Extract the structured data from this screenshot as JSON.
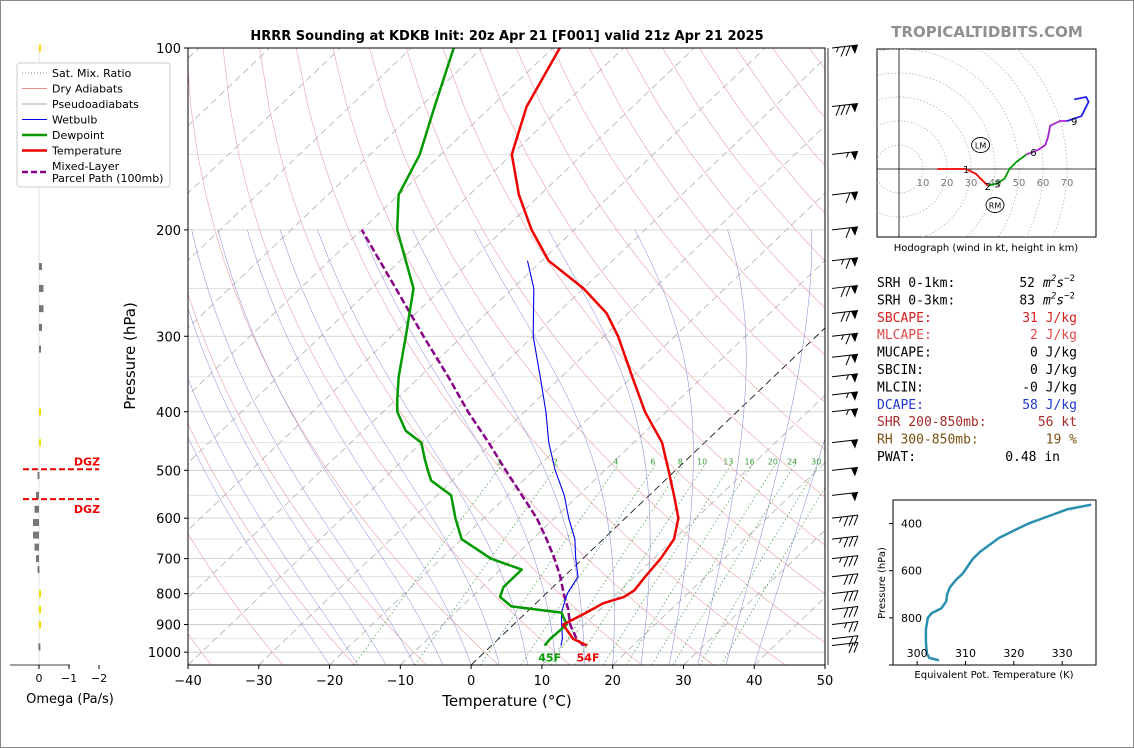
{
  "watermark": "TROPICALTIDBITS.COM",
  "omega_panel": {
    "xlabel": "Omega (Pa/s)",
    "ticks": [
      "0",
      "−1",
      "−2"
    ],
    "dgz_label": "DGZ",
    "bars": [
      {
        "p": 100,
        "w": -0.05,
        "c": "#f0e000"
      },
      {
        "p": 120,
        "w": -0.1,
        "c": "#f0e000"
      },
      {
        "p": 140,
        "w": -0.1,
        "c": "#f0e000"
      },
      {
        "p": 160,
        "w": -0.15,
        "c": "#f0e000"
      },
      {
        "p": 230,
        "w": -0.1,
        "c": "#777777"
      },
      {
        "p": 250,
        "w": -0.15,
        "c": "#777777"
      },
      {
        "p": 270,
        "w": -0.15,
        "c": "#777777"
      },
      {
        "p": 290,
        "w": -0.1,
        "c": "#777777"
      },
      {
        "p": 315,
        "w": -0.05,
        "c": "#777777"
      },
      {
        "p": 400,
        "w": -0.02,
        "c": "#f0e000"
      },
      {
        "p": 450,
        "w": -0.02,
        "c": "#f0e000"
      },
      {
        "p": 510,
        "w": 0.05,
        "c": "#777777"
      },
      {
        "p": 550,
        "w": 0.1,
        "c": "#777777"
      },
      {
        "p": 580,
        "w": 0.15,
        "c": "#777777"
      },
      {
        "p": 610,
        "w": 0.2,
        "c": "#777777"
      },
      {
        "p": 640,
        "w": 0.2,
        "c": "#777777"
      },
      {
        "p": 670,
        "w": 0.15,
        "c": "#777777"
      },
      {
        "p": 700,
        "w": 0.1,
        "c": "#777777"
      },
      {
        "p": 730,
        "w": 0.05,
        "c": "#777777"
      },
      {
        "p": 800,
        "w": -0.02,
        "c": "#f0e000"
      },
      {
        "p": 850,
        "w": -0.02,
        "c": "#f0e000"
      },
      {
        "p": 900,
        "w": -0.02,
        "c": "#f0e000"
      },
      {
        "p": 980,
        "w": 0.02,
        "c": "#777777"
      }
    ]
  },
  "legend": [
    {
      "label": "Sat. Mix. Ratio",
      "color": "#888888",
      "style": "dotted",
      "width": 1
    },
    {
      "label": "Dry Adiabats",
      "color": "#e89090",
      "style": "solid",
      "width": 1
    },
    {
      "label": "Pseudoadiabats",
      "color": "#aaaaaa",
      "style": "solid",
      "width": 1
    },
    {
      "label": "Wetbulb",
      "color": "#0000ee",
      "style": "solid",
      "width": 1
    },
    {
      "label": "Dewpoint",
      "color": "#009900",
      "style": "solid",
      "width": 2.5
    },
    {
      "label": "Temperature",
      "color": "#ee0000",
      "style": "solid",
      "width": 2.5
    },
    {
      "label": "Mixed-Layer\nParcel Path (100mb)",
      "color": "#880088",
      "style": "dashed",
      "width": 2.5
    }
  ],
  "chart_data": [
    {
      "type": "line",
      "title": "HRRR Sounding at KDKB Init: 20z Apr 21 [F001] valid 21z Apr 21 2025",
      "xlabel": "Temperature (°C)",
      "ylabel": "Pressure (hPa)",
      "xlim": [
        -40,
        50
      ],
      "ylim": [
        1050,
        100
      ],
      "y_scale": "log",
      "x_ticks": [
        -40,
        -30,
        -20,
        -10,
        0,
        10,
        20,
        30,
        40,
        50
      ],
      "x_tick_labels": [
        "−40",
        "−30",
        "−20",
        "−10",
        "0",
        "10",
        "20",
        "30",
        "40",
        "50"
      ],
      "y_ticks": [
        100,
        200,
        300,
        400,
        500,
        600,
        700,
        800,
        900,
        1000
      ],
      "mixing_ratio_labels": [
        "1",
        "2",
        "4",
        "6",
        "8",
        "10",
        "13",
        "16",
        "20",
        "24",
        "30",
        "36"
      ],
      "series": [
        {
          "name": "Temperature",
          "color": "#ee0000",
          "points": [
            [
              975,
              13.5
            ],
            [
              950,
              10.5
            ],
            [
              900,
              7
            ],
            [
              860,
              8.5
            ],
            [
              830,
              9.5
            ],
            [
              810,
              11.5
            ],
            [
              790,
              12
            ],
            [
              750,
              11.5
            ],
            [
              700,
              11
            ],
            [
              650,
              10
            ],
            [
              600,
              7.5
            ],
            [
              550,
              3.5
            ],
            [
              500,
              -1
            ],
            [
              450,
              -6
            ],
            [
              400,
              -13
            ],
            [
              350,
              -20
            ],
            [
              300,
              -28
            ],
            [
              275,
              -33
            ],
            [
              250,
              -40
            ],
            [
              225,
              -49
            ],
            [
              200,
              -56
            ],
            [
              175,
              -63
            ],
            [
              150,
              -70
            ],
            [
              125,
              -75
            ],
            [
              100,
              -79
            ]
          ]
        },
        {
          "name": "Dewpoint",
          "color": "#009900",
          "points": [
            [
              975,
              7.5
            ],
            [
              950,
              7.3
            ],
            [
              900,
              7.5
            ],
            [
              860,
              5
            ],
            [
              840,
              -3
            ],
            [
              810,
              -6
            ],
            [
              780,
              -7
            ],
            [
              730,
              -7
            ],
            [
              700,
              -13
            ],
            [
              650,
              -20
            ],
            [
              600,
              -24
            ],
            [
              550,
              -28
            ],
            [
              520,
              -33
            ],
            [
              500,
              -35
            ],
            [
              480,
              -37
            ],
            [
              450,
              -40
            ],
            [
              430,
              -44
            ],
            [
              400,
              -48
            ],
            [
              380,
              -50
            ],
            [
              350,
              -53
            ],
            [
              300,
              -58
            ],
            [
              250,
              -64
            ],
            [
              200,
              -75
            ],
            [
              175,
              -80
            ],
            [
              150,
              -83
            ],
            [
              125,
              -88
            ],
            [
              100,
              -94
            ]
          ]
        },
        {
          "name": "Wetbulb",
          "color": "#0000ee",
          "points": [
            [
              975,
              9.8
            ],
            [
              950,
              9
            ],
            [
              900,
              6.8
            ],
            [
              860,
              5
            ],
            [
              830,
              4
            ],
            [
              800,
              3
            ],
            [
              750,
              2
            ],
            [
              700,
              -1
            ],
            [
              650,
              -4
            ],
            [
              600,
              -8
            ],
            [
              550,
              -12
            ],
            [
              500,
              -17
            ],
            [
              450,
              -22
            ],
            [
              400,
              -27
            ],
            [
              350,
              -33
            ],
            [
              300,
              -40
            ],
            [
              250,
              -47
            ],
            [
              225,
              -52
            ]
          ]
        },
        {
          "name": "Mixed-Layer Parcel Path (100mb)",
          "color": "#880088",
          "points": [
            [
              975,
              13
            ],
            [
              950,
              11
            ],
            [
              900,
              8
            ],
            [
              870,
              6.5
            ],
            [
              850,
              5.5
            ],
            [
              800,
              2.5
            ],
            [
              750,
              -0.5
            ],
            [
              700,
              -4
            ],
            [
              650,
              -8
            ],
            [
              600,
              -12.5
            ],
            [
              550,
              -18
            ],
            [
              500,
              -24
            ],
            [
              450,
              -30.5
            ],
            [
              400,
              -38
            ],
            [
              350,
              -46
            ],
            [
              300,
              -55.5
            ],
            [
              250,
              -66.5
            ],
            [
              200,
              -80
            ]
          ]
        }
      ],
      "surface_labels": {
        "temperature": "54F",
        "dewpoint": "45F"
      },
      "wind_barbs": [
        {
          "p": 100,
          "speed": 75
        },
        {
          "p": 125,
          "speed": 80
        },
        {
          "p": 150,
          "speed": 55
        },
        {
          "p": 175,
          "speed": 60
        },
        {
          "p": 200,
          "speed": 60
        },
        {
          "p": 225,
          "speed": 65
        },
        {
          "p": 250,
          "speed": 70
        },
        {
          "p": 275,
          "speed": 70
        },
        {
          "p": 300,
          "speed": 65
        },
        {
          "p": 325,
          "speed": 60
        },
        {
          "p": 350,
          "speed": 55
        },
        {
          "p": 375,
          "speed": 55
        },
        {
          "p": 400,
          "speed": 55
        },
        {
          "p": 450,
          "speed": 50
        },
        {
          "p": 500,
          "speed": 50
        },
        {
          "p": 550,
          "speed": 50
        },
        {
          "p": 600,
          "speed": 35
        },
        {
          "p": 650,
          "speed": 35
        },
        {
          "p": 700,
          "speed": 35
        },
        {
          "p": 750,
          "speed": 30
        },
        {
          "p": 800,
          "speed": 30
        },
        {
          "p": 850,
          "speed": 30
        },
        {
          "p": 900,
          "speed": 25
        },
        {
          "p": 950,
          "speed": 20
        },
        {
          "p": 975,
          "speed": 20
        }
      ]
    },
    {
      "type": "line",
      "title": "Hodograph (wind in kt, height in km)",
      "rings": [
        10,
        20,
        30,
        40,
        50,
        60,
        70
      ],
      "ring_labels": [
        "10",
        "20",
        "30",
        "40",
        "50",
        "60",
        "70"
      ],
      "storm_motion_labels": {
        "left": "LM",
        "right": "RM"
      },
      "storm_motion": {
        "left": [
          34,
          10
        ],
        "right": [
          40,
          -15
        ]
      },
      "height_labels": [
        {
          "label": "1",
          "u": 28,
          "v": 0
        },
        {
          "label": "2",
          "u": 37,
          "v": -7
        },
        {
          "label": "3",
          "u": 41,
          "v": -6
        },
        {
          "label": "6",
          "u": 56,
          "v": 7
        },
        {
          "label": "9",
          "u": 73,
          "v": 20
        }
      ],
      "segments": [
        {
          "color": "#ee0000",
          "points": [
            [
              16,
              0
            ],
            [
              22,
              0
            ],
            [
              28,
              0
            ],
            [
              32,
              -2
            ],
            [
              37,
              -7
            ]
          ]
        },
        {
          "color": "#009900",
          "points": [
            [
              37,
              -7
            ],
            [
              41,
              -6
            ],
            [
              44,
              -4
            ],
            [
              46,
              0
            ],
            [
              49,
              3
            ],
            [
              53,
              6
            ]
          ]
        },
        {
          "color": "#aa22cc",
          "points": [
            [
              53,
              6
            ],
            [
              58,
              8
            ],
            [
              61,
              10
            ],
            [
              62,
              13
            ],
            [
              63,
              18
            ],
            [
              67,
              20
            ],
            [
              70,
              20
            ]
          ]
        },
        {
          "color": "#2222ee",
          "points": [
            [
              70,
              20
            ],
            [
              76,
              22
            ],
            [
              79,
              28
            ],
            [
              78,
              30
            ],
            [
              73,
              29
            ]
          ]
        }
      ]
    },
    {
      "type": "line",
      "xlabel": "Equivalent Pot. Temperature (K)",
      "ylabel": "Pressure (hPa)",
      "xlim": [
        295,
        337
      ],
      "ylim": [
        1000,
        300
      ],
      "x_ticks": [
        300,
        310,
        320,
        330
      ],
      "x_tick_labels": [
        "300",
        "310",
        "320",
        "330"
      ],
      "y_ticks": [
        400,
        600,
        800
      ],
      "y_tick_labels": [
        "400",
        "600",
        "800"
      ],
      "series": [
        {
          "color": "#2a8fb0",
          "points": [
            [
              980,
              304.5
            ],
            [
              970,
              302.5
            ],
            [
              950,
              302
            ],
            [
              900,
              301.8
            ],
            [
              850,
              301.8
            ],
            [
              800,
              302.2
            ],
            [
              780,
              303
            ],
            [
              760,
              305
            ],
            [
              730,
              306
            ],
            [
              700,
              306.2
            ],
            [
              670,
              306.8
            ],
            [
              640,
              308
            ],
            [
              610,
              309.5
            ],
            [
              580,
              310.5
            ],
            [
              550,
              311.5
            ],
            [
              520,
              313
            ],
            [
              490,
              315
            ],
            [
              460,
              317
            ],
            [
              430,
              320
            ],
            [
              400,
              323
            ],
            [
              370,
              327
            ],
            [
              340,
              331
            ],
            [
              320,
              336
            ]
          ]
        }
      ]
    }
  ],
  "indices": [
    {
      "label": "SRH 0-1km:",
      "value": "52",
      "unit": "m2s-2",
      "color": "#000000"
    },
    {
      "label": "SRH 0-3km:",
      "value": "83",
      "unit": "m2s-2",
      "color": "#000000"
    },
    {
      "label": "SBCAPE:",
      "value": "31 J/kg",
      "color": "#d42020"
    },
    {
      "label": "MLCAPE:",
      "value": " 2 J/kg",
      "color": "#e04848"
    },
    {
      "label": "MUCAPE:",
      "value": " 0 J/kg",
      "color": "#000000"
    },
    {
      "label": "SBCIN:",
      "value": " 0 J/kg",
      "color": "#000000"
    },
    {
      "label": "MLCIN:",
      "value": "-0 J/kg",
      "color": "#000000"
    },
    {
      "label": "DCAPE:",
      "value": "58 J/kg",
      "color": "#2238d0"
    },
    {
      "label": "SHR 200-850mb:",
      "value": "56 kt",
      "color": "#a52a2a"
    },
    {
      "label": "RH 300-850mb:",
      "value": "19 %",
      "color": "#7a5010"
    },
    {
      "label": "PWAT:",
      "value": "0.48 in",
      "color": "#000000"
    }
  ]
}
